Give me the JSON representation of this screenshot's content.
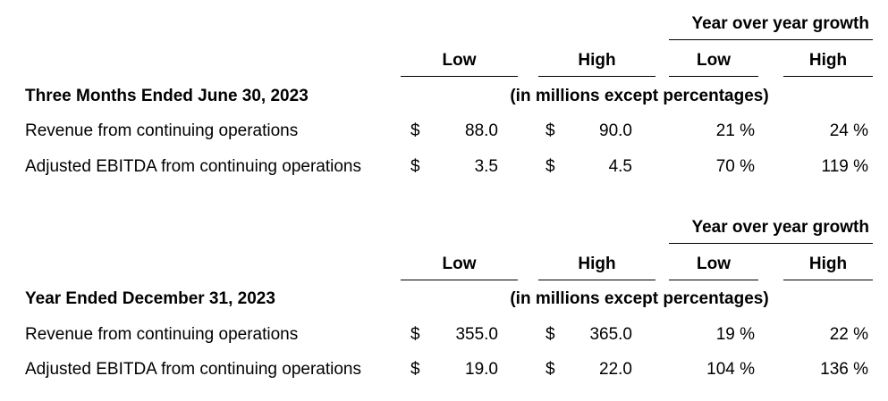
{
  "tables": [
    {
      "period_title": "Three Months Ended June 30, 2023",
      "group_header": "Year over year growth",
      "col_low": "Low",
      "col_high": "High",
      "growth_low": "Low",
      "growth_high": "High",
      "units_note": "(in millions except percentages)",
      "rows": [
        {
          "label": "Revenue from continuing operations",
          "cur1": "$",
          "low": "88.0",
          "cur2": "$",
          "high": "90.0",
          "growth_low": "21 %",
          "growth_high": "24 %"
        },
        {
          "label": "Adjusted EBITDA from continuing operations",
          "cur1": "$",
          "low": "3.5",
          "cur2": "$",
          "high": "4.5",
          "growth_low": "70 %",
          "growth_high": "119 %"
        }
      ]
    },
    {
      "period_title": "Year Ended December 31, 2023",
      "group_header": "Year over year growth",
      "col_low": "Low",
      "col_high": "High",
      "growth_low": "Low",
      "growth_high": "High",
      "units_note": "(in millions except percentages)",
      "rows": [
        {
          "label": "Revenue from continuing operations",
          "cur1": "$",
          "low": "355.0",
          "cur2": "$",
          "high": "365.0",
          "growth_low": "19 %",
          "growth_high": "22 %"
        },
        {
          "label": "Adjusted EBITDA from continuing operations",
          "cur1": "$",
          "low": "19.0",
          "cur2": "$",
          "high": "22.0",
          "growth_low": "104 %",
          "growth_high": "136 %"
        }
      ]
    }
  ]
}
